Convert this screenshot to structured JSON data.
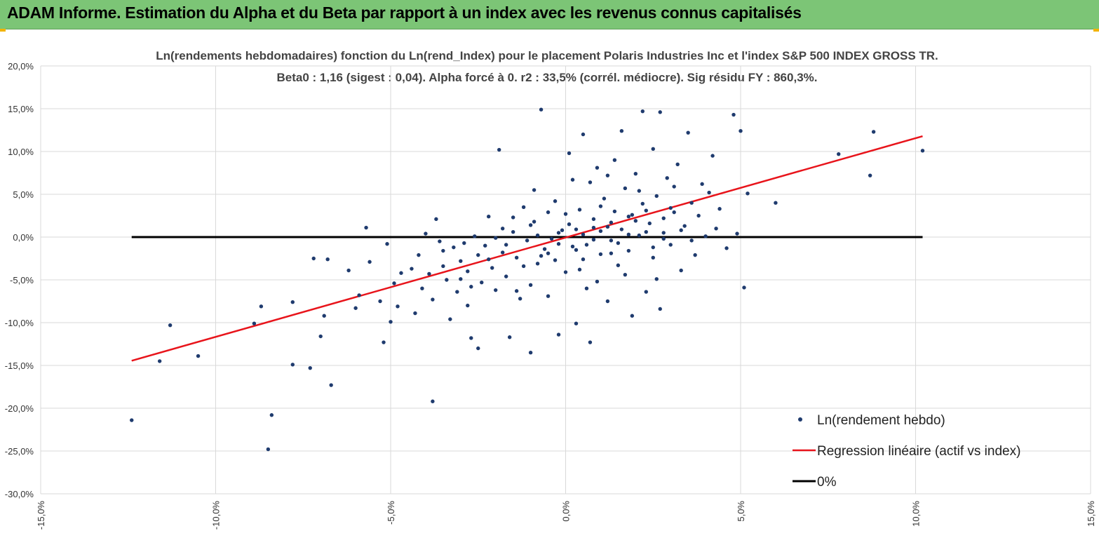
{
  "header": {
    "title": "ADAM Informe. Estimation du Alpha et du Beta par rapport à un index avec les revenus connus capitalisés"
  },
  "chart_data": {
    "type": "scatter",
    "title": "Ln(rendements hebdomadaires) fonction du Ln(rend_Index) pour le placement Polaris Industries Inc et l'index S&P 500 INDEX GROSS TR.",
    "subtitle": "Beta0 : 1,16  (sigest : 0,04). Alpha forcé à 0. r2 : 33,5% (corrél. médiocre). Sig résidu FY : 860,3%.",
    "xlim": [
      -15,
      15
    ],
    "ylim": [
      -30,
      20
    ],
    "x_ticks": [
      -15,
      -10,
      -5,
      0,
      5,
      10,
      15
    ],
    "y_ticks": [
      20,
      15,
      10,
      5,
      0,
      -5,
      -10,
      -15,
      -20,
      -25,
      -30
    ],
    "x_tick_labels": [
      "-15,0%",
      "-10,0%",
      "-5,0%",
      "0,0%",
      "5,0%",
      "10,0%",
      "15,0%"
    ],
    "y_tick_labels": [
      "20,0%",
      "15,0%",
      "10,0%",
      "5,0%",
      "0,0%",
      "-5,0%",
      "-10,0%",
      "-15,0%",
      "-20,0%",
      "-25,0%",
      "-30,0%"
    ],
    "grid": true,
    "legend_position": "bottom-right",
    "colors": {
      "points": "#1f3b6e",
      "regression": "#e8141b",
      "zero": "#000000",
      "grid": "#d9d9d9"
    },
    "series": [
      {
        "name": "Ln(rendement hebdo)",
        "kind": "scatter",
        "points": [
          [
            -12.4,
            -21.4
          ],
          [
            -11.6,
            -14.5
          ],
          [
            -11.3,
            -10.3
          ],
          [
            -10.5,
            -13.9
          ],
          [
            -8.9,
            -10.1
          ],
          [
            -8.7,
            -8.1
          ],
          [
            -8.5,
            -24.8
          ],
          [
            -8.4,
            -20.8
          ],
          [
            -7.8,
            -14.9
          ],
          [
            -7.8,
            -7.6
          ],
          [
            -7.3,
            -15.3
          ],
          [
            -7.2,
            -2.5
          ],
          [
            -7.0,
            -11.6
          ],
          [
            -6.9,
            -9.2
          ],
          [
            -6.8,
            -2.6
          ],
          [
            -6.7,
            -17.3
          ],
          [
            -6.2,
            -3.9
          ],
          [
            -6.0,
            -8.3
          ],
          [
            -5.9,
            -6.8
          ],
          [
            -5.7,
            1.1
          ],
          [
            -5.6,
            -2.9
          ],
          [
            -5.3,
            -7.5
          ],
          [
            -5.2,
            -12.3
          ],
          [
            -5.1,
            -0.8
          ],
          [
            -5.0,
            -9.9
          ],
          [
            -4.9,
            -5.4
          ],
          [
            -4.8,
            -8.1
          ],
          [
            -4.7,
            -4.2
          ],
          [
            -4.4,
            -3.7
          ],
          [
            -4.3,
            -8.9
          ],
          [
            -4.2,
            -2.1
          ],
          [
            -4.1,
            -6.0
          ],
          [
            -4.0,
            0.4
          ],
          [
            -3.9,
            -4.3
          ],
          [
            -3.8,
            -7.3
          ],
          [
            -3.8,
            -19.2
          ],
          [
            -3.7,
            2.1
          ],
          [
            -3.6,
            -0.5
          ],
          [
            -3.5,
            -3.4
          ],
          [
            -3.4,
            -5.0
          ],
          [
            -3.3,
            -9.6
          ],
          [
            -3.2,
            -1.2
          ],
          [
            -3.1,
            -6.4
          ],
          [
            -3.0,
            -2.8
          ],
          [
            -2.9,
            -0.7
          ],
          [
            -2.8,
            -4.0
          ],
          [
            -2.8,
            -8.0
          ],
          [
            -2.7,
            -11.8
          ],
          [
            -2.6,
            0.1
          ],
          [
            -2.5,
            -2.1
          ],
          [
            -2.5,
            -13.0
          ],
          [
            -2.4,
            -5.3
          ],
          [
            -2.3,
            -1.0
          ],
          [
            -2.2,
            2.4
          ],
          [
            -2.1,
            -3.6
          ],
          [
            -2.0,
            -6.2
          ],
          [
            -1.9,
            10.2
          ],
          [
            -1.8,
            1.0
          ],
          [
            -1.8,
            -1.8
          ],
          [
            -1.7,
            -4.6
          ],
          [
            -1.6,
            -11.7
          ],
          [
            -1.5,
            0.6
          ],
          [
            -1.4,
            -2.4
          ],
          [
            -1.3,
            -7.2
          ],
          [
            -1.2,
            3.5
          ],
          [
            -1.1,
            -0.4
          ],
          [
            -1.0,
            -5.6
          ],
          [
            -1.0,
            -13.5
          ],
          [
            -0.9,
            1.8
          ],
          [
            -0.8,
            -3.1
          ],
          [
            -0.7,
            14.9
          ],
          [
            -0.6,
            -1.4
          ],
          [
            -0.5,
            2.9
          ],
          [
            -0.5,
            -6.9
          ],
          [
            -0.4,
            -0.2
          ],
          [
            -0.3,
            4.2
          ],
          [
            -0.3,
            -2.7
          ],
          [
            -0.2,
            -11.4
          ],
          [
            -0.1,
            0.8
          ],
          [
            0.0,
            -4.1
          ],
          [
            0.1,
            9.8
          ],
          [
            0.1,
            1.5
          ],
          [
            0.2,
            -1.1
          ],
          [
            0.3,
            -10.1
          ],
          [
            0.4,
            3.2
          ],
          [
            0.4,
            -3.8
          ],
          [
            0.5,
            12.0
          ],
          [
            0.5,
            0.3
          ],
          [
            0.6,
            -0.9
          ],
          [
            0.7,
            6.4
          ],
          [
            0.7,
            -12.3
          ],
          [
            0.8,
            2.1
          ],
          [
            0.9,
            -5.2
          ],
          [
            0.9,
            8.1
          ],
          [
            1.0,
            0.7
          ],
          [
            1.0,
            -2.0
          ],
          [
            1.1,
            4.5
          ],
          [
            1.2,
            -7.5
          ],
          [
            1.2,
            1.2
          ],
          [
            1.3,
            -0.4
          ],
          [
            1.4,
            9.0
          ],
          [
            1.4,
            3.0
          ],
          [
            1.5,
            -3.3
          ],
          [
            1.6,
            12.4
          ],
          [
            1.6,
            0.9
          ],
          [
            1.7,
            5.7
          ],
          [
            1.8,
            -1.6
          ],
          [
            1.9,
            2.6
          ],
          [
            1.9,
            -9.2
          ],
          [
            2.0,
            7.4
          ],
          [
            2.1,
            0.2
          ],
          [
            2.2,
            14.7
          ],
          [
            2.2,
            3.9
          ],
          [
            2.3,
            -6.4
          ],
          [
            2.4,
            1.6
          ],
          [
            2.5,
            10.3
          ],
          [
            2.5,
            -2.4
          ],
          [
            2.6,
            4.8
          ],
          [
            2.7,
            14.6
          ],
          [
            2.7,
            -8.4
          ],
          [
            2.8,
            0.5
          ],
          [
            2.9,
            6.9
          ],
          [
            3.0,
            -0.9
          ],
          [
            3.1,
            2.9
          ],
          [
            3.2,
            8.5
          ],
          [
            3.3,
            -3.9
          ],
          [
            3.4,
            1.3
          ],
          [
            3.5,
            12.2
          ],
          [
            3.6,
            4.0
          ],
          [
            3.7,
            -2.1
          ],
          [
            3.9,
            6.2
          ],
          [
            4.0,
            0.1
          ],
          [
            4.2,
            9.5
          ],
          [
            4.4,
            3.3
          ],
          [
            4.6,
            -1.3
          ],
          [
            4.8,
            14.3
          ],
          [
            4.9,
            0.4
          ],
          [
            5.0,
            12.4
          ],
          [
            5.1,
            -5.9
          ],
          [
            5.2,
            5.1
          ],
          [
            6.0,
            4.0
          ],
          [
            7.8,
            9.7
          ],
          [
            8.7,
            7.2
          ],
          [
            8.8,
            12.3
          ],
          [
            10.2,
            10.1
          ],
          [
            -3.0,
            -4.9
          ],
          [
            -2.0,
            -0.1
          ],
          [
            -1.5,
            2.3
          ],
          [
            -1.0,
            1.4
          ],
          [
            -0.5,
            -1.9
          ],
          [
            0.0,
            2.7
          ],
          [
            0.5,
            -2.6
          ],
          [
            1.0,
            3.6
          ],
          [
            1.5,
            -0.7
          ],
          [
            2.0,
            1.9
          ],
          [
            2.5,
            -1.2
          ],
          [
            3.0,
            3.4
          ],
          [
            -0.8,
            0.2
          ],
          [
            -0.2,
            -0.8
          ],
          [
            0.3,
            0.9
          ],
          [
            0.8,
            -0.3
          ],
          [
            1.3,
            1.7
          ],
          [
            1.8,
            2.4
          ],
          [
            2.3,
            0.6
          ],
          [
            2.8,
            2.2
          ],
          [
            -2.2,
            -2.6
          ],
          [
            -1.7,
            -0.9
          ],
          [
            -1.2,
            -3.4
          ],
          [
            -0.7,
            -2.2
          ],
          [
            -0.2,
            0.5
          ],
          [
            0.3,
            -1.5
          ],
          [
            0.8,
            1.1
          ],
          [
            1.3,
            -1.9
          ],
          [
            1.8,
            0.3
          ],
          [
            2.3,
            3.1
          ],
          [
            2.8,
            -0.2
          ],
          [
            3.3,
            0.8
          ],
          [
            3.8,
            2.5
          ],
          [
            4.3,
            1.0
          ],
          [
            -3.5,
            -1.6
          ],
          [
            -2.7,
            -5.8
          ],
          [
            -1.4,
            -6.3
          ],
          [
            0.6,
            -6.0
          ],
          [
            1.7,
            -4.4
          ],
          [
            2.6,
            -4.9
          ],
          [
            3.6,
            -0.4
          ],
          [
            -0.9,
            5.5
          ],
          [
            0.2,
            6.7
          ],
          [
            1.2,
            7.2
          ],
          [
            2.1,
            5.4
          ],
          [
            3.1,
            5.9
          ],
          [
            4.1,
            5.2
          ]
        ]
      },
      {
        "name": "Regression linéaire (actif vs index)",
        "kind": "line",
        "x": [
          -12.4,
          10.2
        ],
        "y": [
          -14.45,
          11.79
        ]
      },
      {
        "name": "0%",
        "kind": "line",
        "x": [
          -12.4,
          10.2
        ],
        "y": [
          0,
          0
        ]
      }
    ]
  }
}
